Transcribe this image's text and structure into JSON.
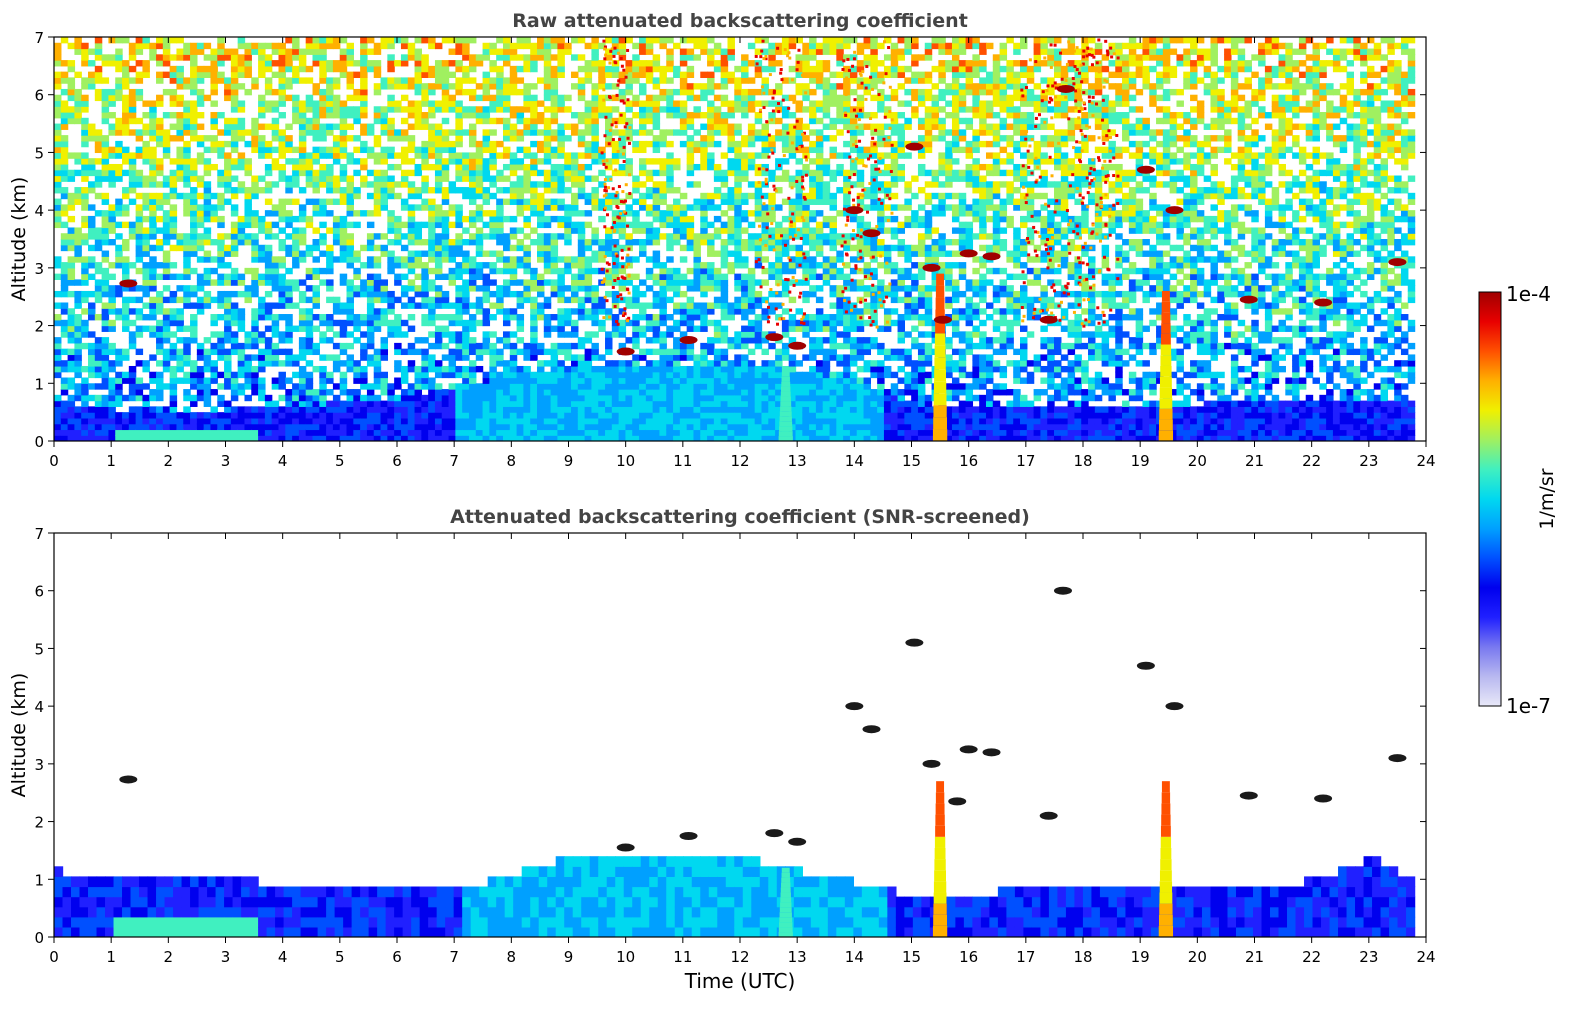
{
  "chart_data": [
    {
      "type": "heatmap",
      "title": "Raw attenuated backscattering coefficient",
      "xlabel": "",
      "ylabel": "Altitude (km)",
      "xlim": [
        0,
        24
      ],
      "ylim": [
        0,
        7
      ],
      "xticks": [
        "0",
        "1",
        "2",
        "3",
        "4",
        "5",
        "6",
        "7",
        "8",
        "9",
        "10",
        "11",
        "12",
        "13",
        "14",
        "15",
        "16",
        "17",
        "18",
        "19",
        "20",
        "21",
        "22",
        "23",
        "24"
      ],
      "yticks": [
        "0",
        "1",
        "2",
        "3",
        "4",
        "5",
        "6",
        "7"
      ],
      "grid": false,
      "screening": "raw",
      "boundary_layer_top_km": [
        [
          0,
          0.55
        ],
        [
          2,
          0.45
        ],
        [
          4,
          0.55
        ],
        [
          6,
          0.7
        ],
        [
          8,
          1.1
        ],
        [
          10,
          1.3
        ],
        [
          12,
          1.3
        ],
        [
          14,
          1.0
        ],
        [
          15,
          0.6
        ],
        [
          16,
          0.6
        ],
        [
          18,
          0.6
        ],
        [
          20,
          0.6
        ],
        [
          22,
          0.7
        ],
        [
          23.8,
          0.7
        ]
      ],
      "plume_columns": [
        {
          "time_utc": 15.5,
          "top_km": 2.9,
          "strength": "high"
        },
        {
          "time_utc": 19.45,
          "top_km": 2.6,
          "strength": "high"
        },
        {
          "time_utc": 12.8,
          "top_km": 1.2,
          "strength": "medium"
        }
      ],
      "cloud_patches": [
        {
          "time_utc": 1.3,
          "altitude_km": 2.73
        },
        {
          "time_utc": 10.0,
          "altitude_km": 1.55
        },
        {
          "time_utc": 11.1,
          "altitude_km": 1.75
        },
        {
          "time_utc": 12.6,
          "altitude_km": 1.8
        },
        {
          "time_utc": 13.0,
          "altitude_km": 1.65
        },
        {
          "time_utc": 14.3,
          "altitude_km": 3.6
        },
        {
          "time_utc": 14.0,
          "altitude_km": 4.0
        },
        {
          "time_utc": 15.35,
          "altitude_km": 3.0
        },
        {
          "time_utc": 15.55,
          "altitude_km": 2.1
        },
        {
          "time_utc": 16.0,
          "altitude_km": 3.25
        },
        {
          "time_utc": 16.4,
          "altitude_km": 3.2
        },
        {
          "time_utc": 17.4,
          "altitude_km": 2.1
        },
        {
          "time_utc": 17.7,
          "altitude_km": 6.1
        },
        {
          "time_utc": 19.1,
          "altitude_km": 4.7
        },
        {
          "time_utc": 19.6,
          "altitude_km": 4.0
        },
        {
          "time_utc": 20.9,
          "altitude_km": 2.45
        },
        {
          "time_utc": 22.2,
          "altitude_km": 2.4
        },
        {
          "time_utc": 23.5,
          "altitude_km": 3.1
        },
        {
          "time_utc": 15.05,
          "altitude_km": 5.1
        }
      ]
    },
    {
      "type": "heatmap",
      "title": "Attenuated backscattering coefficient (SNR-screened)",
      "xlabel": "Time (UTC)",
      "ylabel": "Altitude (km)",
      "xlim": [
        0,
        24
      ],
      "ylim": [
        0,
        7
      ],
      "xticks": [
        "0",
        "1",
        "2",
        "3",
        "4",
        "5",
        "6",
        "7",
        "8",
        "9",
        "10",
        "11",
        "12",
        "13",
        "14",
        "15",
        "16",
        "17",
        "18",
        "19",
        "20",
        "21",
        "22",
        "23",
        "24"
      ],
      "yticks": [
        "0",
        "1",
        "2",
        "3",
        "4",
        "5",
        "6",
        "7"
      ],
      "grid": false,
      "screening": "snr",
      "boundary_layer_top_km": [
        [
          0,
          1.05
        ],
        [
          2,
          0.95
        ],
        [
          4,
          0.85
        ],
        [
          6,
          0.85
        ],
        [
          7,
          0.75
        ],
        [
          8,
          1.0
        ],
        [
          9,
          1.3
        ],
        [
          10,
          1.35
        ],
        [
          12,
          1.3
        ],
        [
          13,
          1.05
        ],
        [
          14,
          0.85
        ],
        [
          15,
          0.6
        ],
        [
          16,
          0.6
        ],
        [
          17,
          0.8
        ],
        [
          18,
          0.7
        ],
        [
          19,
          0.75
        ],
        [
          20,
          0.7
        ],
        [
          21,
          0.75
        ],
        [
          22,
          0.9
        ],
        [
          23,
          1.3
        ],
        [
          23.8,
          0.85
        ]
      ],
      "plume_columns": [
        {
          "time_utc": 15.5,
          "top_km": 2.7,
          "strength": "high"
        },
        {
          "time_utc": 19.45,
          "top_km": 2.7,
          "strength": "high"
        },
        {
          "time_utc": 12.8,
          "top_km": 1.2,
          "strength": "medium"
        }
      ],
      "cloud_patches": [
        {
          "time_utc": 1.3,
          "altitude_km": 2.73
        },
        {
          "time_utc": 10.0,
          "altitude_km": 1.55
        },
        {
          "time_utc": 11.1,
          "altitude_km": 1.75
        },
        {
          "time_utc": 12.6,
          "altitude_km": 1.8
        },
        {
          "time_utc": 13.0,
          "altitude_km": 1.65
        },
        {
          "time_utc": 14.3,
          "altitude_km": 3.6
        },
        {
          "time_utc": 14.0,
          "altitude_km": 4.0
        },
        {
          "time_utc": 15.35,
          "altitude_km": 3.0
        },
        {
          "time_utc": 15.8,
          "altitude_km": 2.35
        },
        {
          "time_utc": 16.0,
          "altitude_km": 3.25
        },
        {
          "time_utc": 16.4,
          "altitude_km": 3.2
        },
        {
          "time_utc": 17.4,
          "altitude_km": 2.1
        },
        {
          "time_utc": 17.65,
          "altitude_km": 6.0
        },
        {
          "time_utc": 19.1,
          "altitude_km": 4.7
        },
        {
          "time_utc": 19.6,
          "altitude_km": 4.0
        },
        {
          "time_utc": 20.9,
          "altitude_km": 2.45
        },
        {
          "time_utc": 22.2,
          "altitude_km": 2.4
        },
        {
          "time_utc": 23.5,
          "altitude_km": 3.1
        },
        {
          "time_utc": 15.05,
          "altitude_km": 5.1
        }
      ]
    }
  ],
  "colorbar": {
    "max_label": "1e-4",
    "min_label": "1e-7",
    "unit_label": "1/m/sr",
    "scale": "log",
    "colors": [
      "#e8e8f8",
      "#b8b8f0",
      "#7878f0",
      "#2020ff",
      "#0000ee",
      "#0050ff",
      "#00a0ff",
      "#00d8f0",
      "#40f0c0",
      "#a0f060",
      "#f0f000",
      "#ffb000",
      "#ff5000",
      "#e80000",
      "#a00000"
    ]
  }
}
